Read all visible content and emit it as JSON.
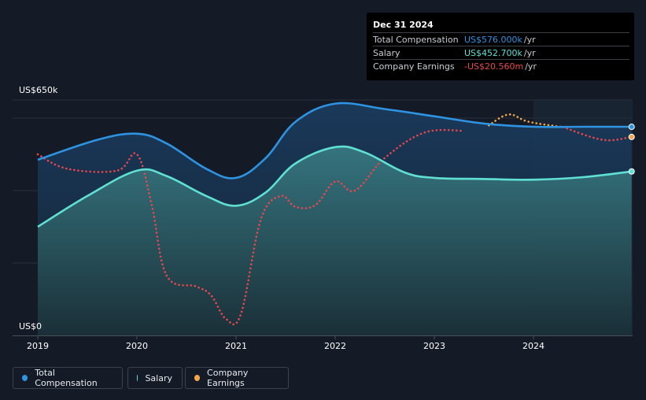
{
  "chart_data": {
    "type": "line",
    "y_axis": {
      "max_label": "US$650k",
      "min_label": "US$0",
      "ylim": [
        0,
        650
      ]
    },
    "x_ticks": [
      "2019",
      "2020",
      "2021",
      "2022",
      "2023",
      "2024"
    ],
    "series": [
      {
        "name": "Total Compensation",
        "color": "#2e93e0",
        "points": [
          [
            2019.0,
            485
          ],
          [
            2019.6,
            540
          ],
          [
            2020.0,
            557
          ],
          [
            2020.3,
            530
          ],
          [
            2020.7,
            460
          ],
          [
            2021.0,
            435
          ],
          [
            2021.3,
            490
          ],
          [
            2021.6,
            590
          ],
          [
            2022.0,
            640
          ],
          [
            2022.5,
            625
          ],
          [
            2023.0,
            605
          ],
          [
            2023.5,
            585
          ],
          [
            2024.0,
            576
          ],
          [
            2024.5,
            576
          ],
          [
            2024.99,
            576
          ]
        ]
      },
      {
        "name": "Salary",
        "color": "#5fe0d3",
        "points": [
          [
            2019.0,
            300
          ],
          [
            2019.5,
            385
          ],
          [
            2020.0,
            455
          ],
          [
            2020.3,
            440
          ],
          [
            2020.7,
            385
          ],
          [
            2021.0,
            358
          ],
          [
            2021.3,
            395
          ],
          [
            2021.6,
            475
          ],
          [
            2022.0,
            520
          ],
          [
            2022.3,
            505
          ],
          [
            2022.7,
            450
          ],
          [
            2023.0,
            435
          ],
          [
            2023.5,
            432
          ],
          [
            2024.0,
            430
          ],
          [
            2024.5,
            437
          ],
          [
            2024.99,
            452.7
          ]
        ]
      },
      {
        "name": "Company Earnings",
        "color": "#e8474c",
        "future_color": "#f2a84a",
        "dotted": true,
        "points": [
          [
            2019.0,
            500
          ],
          [
            2019.3,
            460
          ],
          [
            2019.8,
            455
          ],
          [
            2020.0,
            500
          ],
          [
            2020.15,
            360
          ],
          [
            2020.3,
            165
          ],
          [
            2020.6,
            135
          ],
          [
            2020.75,
            110
          ],
          [
            2020.9,
            45
          ],
          [
            2021.05,
            60
          ],
          [
            2021.25,
            320
          ],
          [
            2021.45,
            385
          ],
          [
            2021.6,
            355
          ],
          [
            2021.8,
            360
          ],
          [
            2022.0,
            425
          ],
          [
            2022.2,
            400
          ],
          [
            2022.5,
            490
          ],
          [
            2022.9,
            560
          ],
          [
            2023.3,
            565
          ],
          [
            2023.55,
            580
          ],
          [
            2023.75,
            610
          ],
          [
            2023.95,
            590
          ],
          [
            2024.3,
            575
          ],
          [
            2024.7,
            540
          ],
          [
            2024.99,
            548
          ]
        ],
        "future_from": 2023.5,
        "future_to": 2024.3
      }
    ],
    "forecast_region_from": 2024.0
  },
  "tooltip": {
    "date": "Dec 31 2024",
    "rows": [
      {
        "label": "Total Compensation",
        "value": "US$576.000k",
        "unit": "/yr",
        "color": "#2e93e0"
      },
      {
        "label": "Salary",
        "value": "US$452.700k",
        "unit": "/yr",
        "color": "#5fe0d3"
      },
      {
        "label": "Company Earnings",
        "value": "-US$20.560m",
        "unit": "/yr",
        "color": "#e8474c"
      }
    ]
  },
  "legend": [
    {
      "label": "Total Compensation",
      "color": "#2e93e0"
    },
    {
      "label": "Salary",
      "color": "#5fe0d3"
    },
    {
      "label": "Company Earnings",
      "color": "#f2a84a"
    }
  ]
}
